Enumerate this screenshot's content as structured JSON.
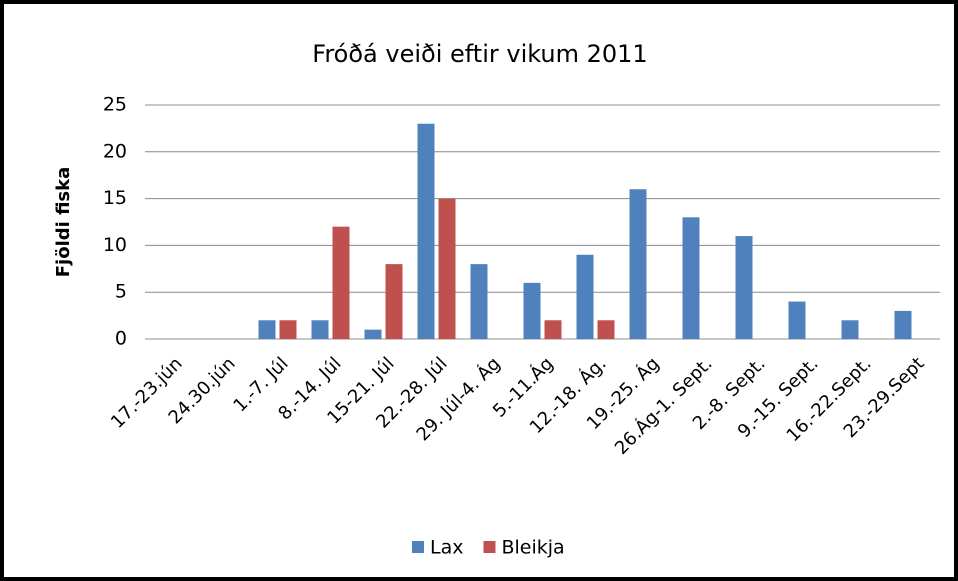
{
  "chart_data": {
    "type": "bar",
    "title": "Fróðá veiði eftir vikum 2011",
    "y_label": "Fjöldi fiska",
    "categories": [
      "17.-23.jún",
      "24.30.jún",
      "1.-7. Júl",
      "8.-14. Júl",
      "15-21. Júl",
      "22.-28. Júl",
      "29. Júl-4. Ág",
      "5.-11.Ág",
      "12.-18. Ág.",
      "19.-25. Ág",
      "26.Ág-1. Sept.",
      "2.-8. Sept.",
      "9.-15. Sept.",
      "16.-22.Sept.",
      "23.-29.Sept"
    ],
    "series": [
      {
        "name": "Lax",
        "color": "#4f81bd",
        "values": [
          0,
          0,
          2,
          2,
          1,
          23,
          8,
          6,
          9,
          16,
          13,
          11,
          4,
          2,
          3
        ]
      },
      {
        "name": "Bleikja",
        "color": "#c0504d",
        "values": [
          0,
          0,
          2,
          12,
          8,
          15,
          0,
          2,
          2,
          0,
          0,
          0,
          0,
          0,
          0
        ]
      }
    ],
    "ylim": [
      0,
      25
    ],
    "yticks": [
      0,
      5,
      10,
      15,
      20,
      25
    ],
    "grid": true,
    "legend": "bottom"
  }
}
